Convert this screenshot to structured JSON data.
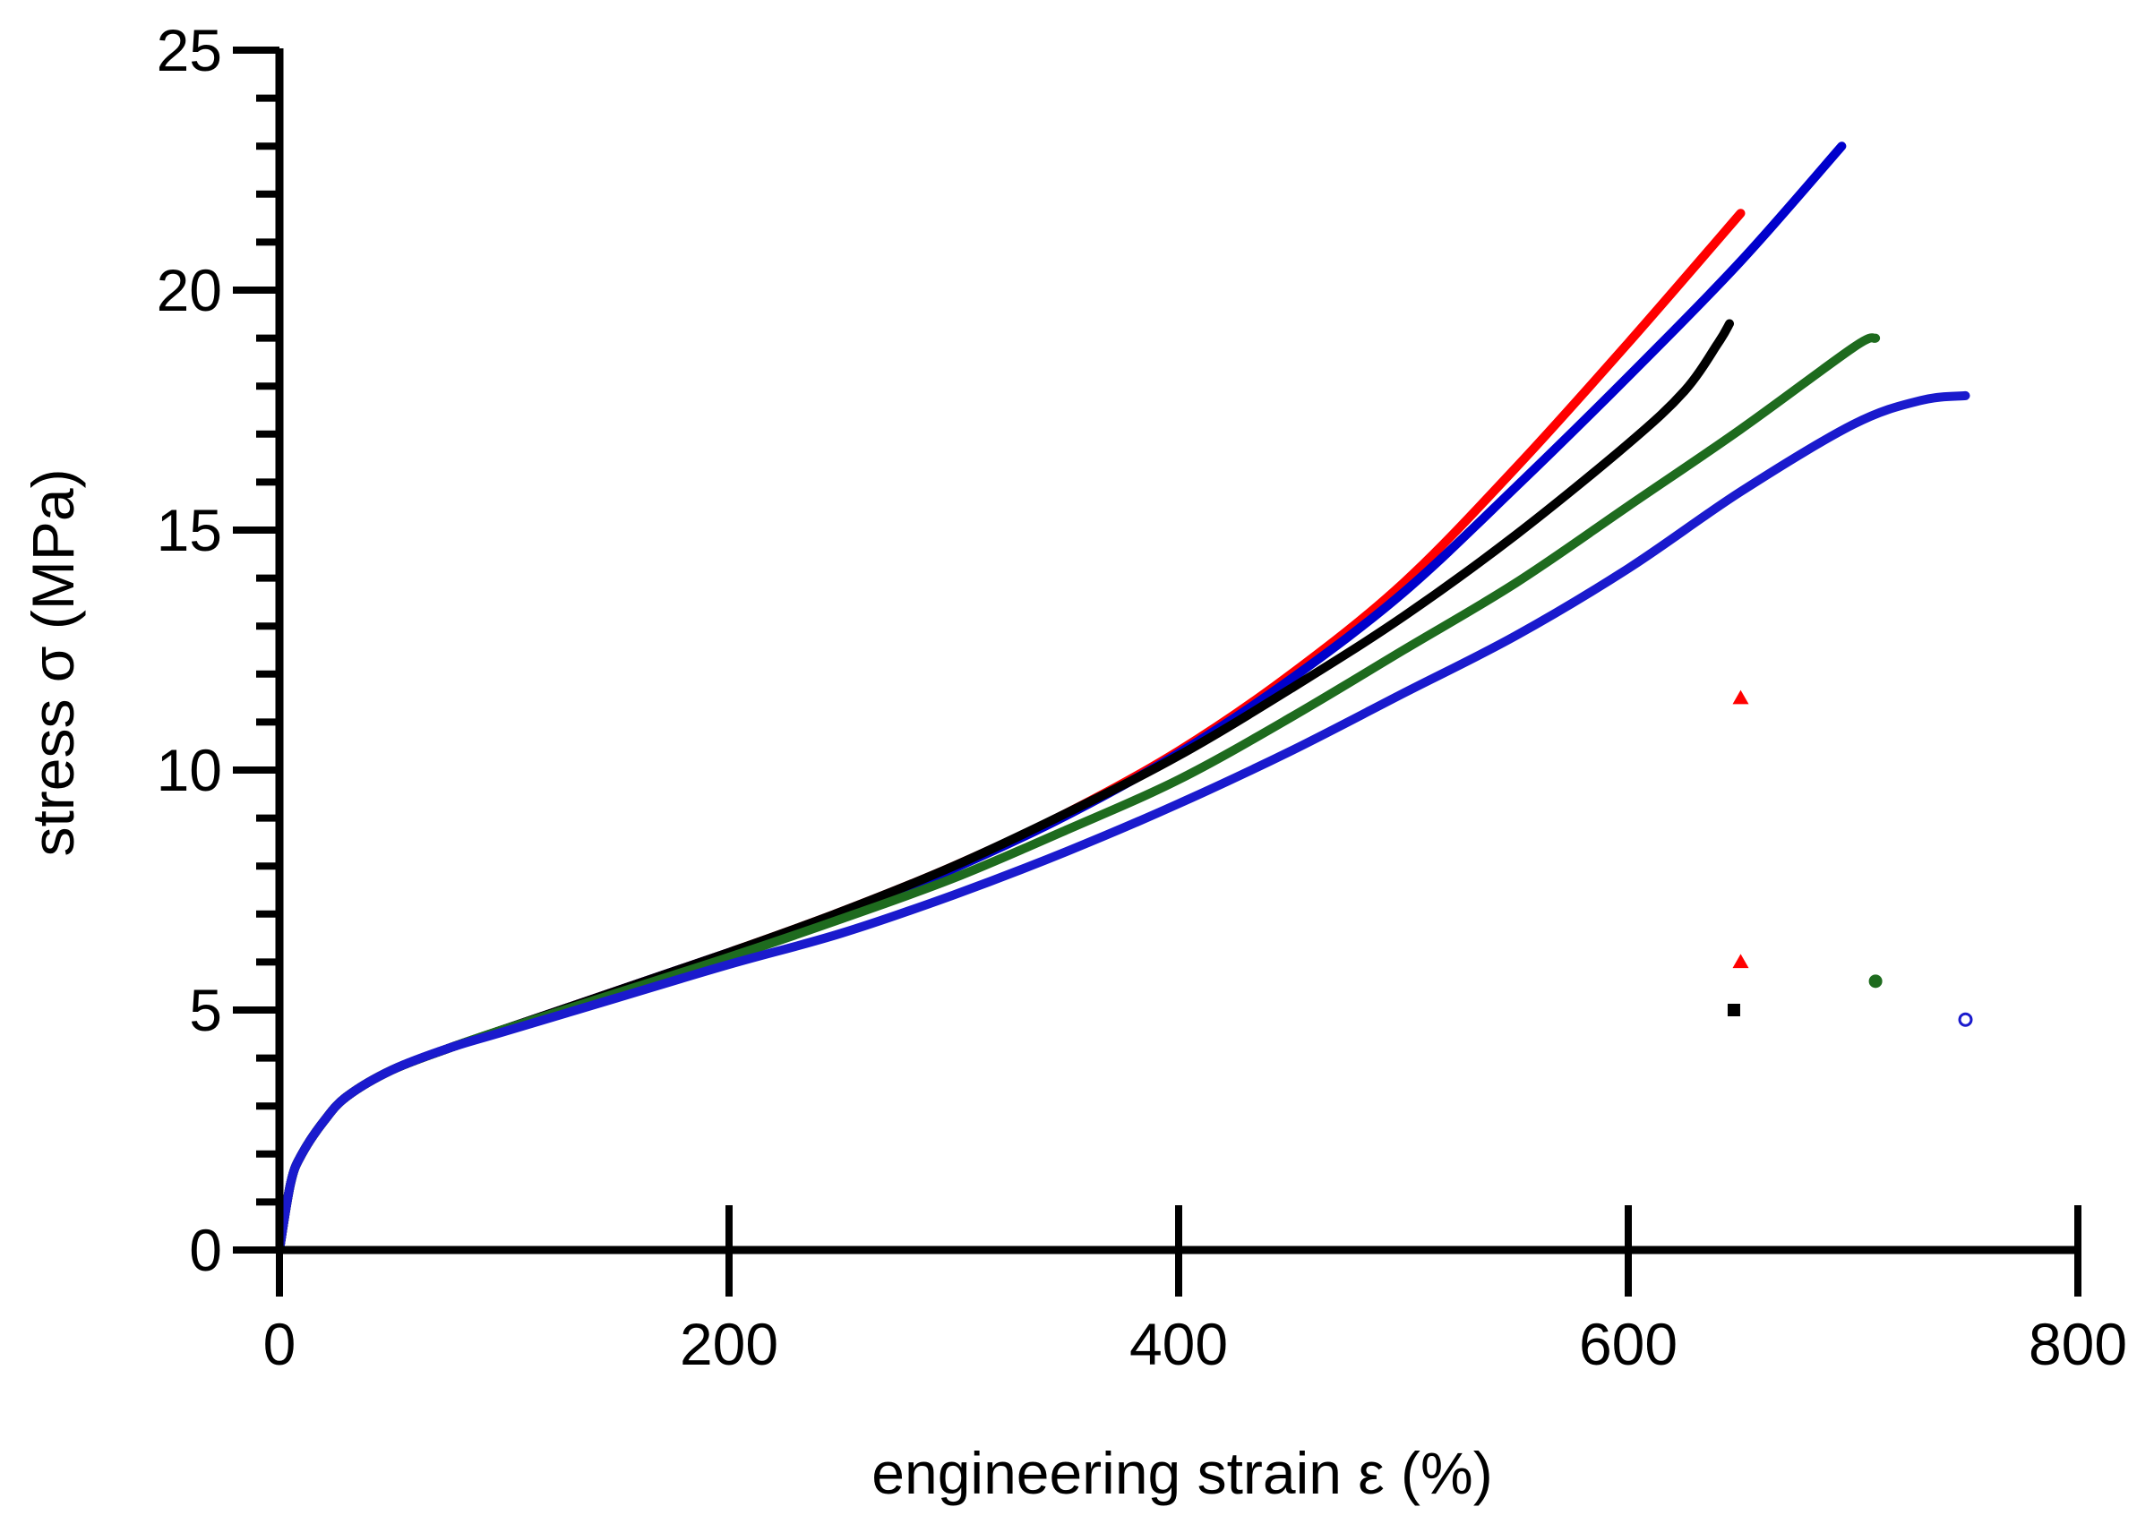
{
  "chart_data": {
    "type": "line",
    "title": "",
    "xlabel": "engineering strain ε (%)",
    "ylabel": "stress σ (MPa)",
    "xlim": [
      0,
      800
    ],
    "ylim": [
      0,
      25
    ],
    "x_ticks": [
      0,
      200,
      400,
      600,
      800
    ],
    "y_ticks": [
      0,
      5,
      10,
      15,
      20,
      25
    ],
    "x_tick_labels": [
      "0",
      "200",
      "400",
      "600",
      "800"
    ],
    "y_tick_labels": [
      "0",
      "5",
      "10",
      "15",
      "20",
      "25"
    ],
    "grid": false,
    "legend": "none",
    "series": [
      {
        "name": "red",
        "color": "#ff0000",
        "x": [
          0,
          5,
          10,
          20,
          30,
          50,
          75,
          100,
          150,
          200,
          250,
          300,
          350,
          400,
          450,
          500,
          550,
          600,
          650
        ],
        "y": [
          0,
          1.4,
          2.0,
          2.7,
          3.2,
          3.75,
          4.2,
          4.6,
          5.4,
          6.2,
          7.05,
          8.0,
          9.1,
          10.4,
          12.0,
          13.9,
          16.3,
          18.9,
          21.6
        ]
      },
      {
        "name": "blue (upper)",
        "color": "#0000cc",
        "x": [
          0,
          5,
          10,
          20,
          30,
          50,
          75,
          100,
          150,
          200,
          250,
          300,
          350,
          400,
          450,
          500,
          550,
          600,
          650,
          695
        ],
        "y": [
          0,
          1.4,
          2.0,
          2.7,
          3.2,
          3.75,
          4.2,
          4.6,
          5.4,
          6.2,
          7.0,
          7.95,
          9.05,
          10.35,
          11.9,
          13.7,
          15.9,
          18.2,
          20.6,
          23.0
        ]
      },
      {
        "name": "black",
        "color": "#000000",
        "x": [
          0,
          5,
          10,
          20,
          30,
          50,
          75,
          100,
          150,
          200,
          250,
          300,
          350,
          400,
          450,
          500,
          550,
          600,
          625,
          640,
          645
        ],
        "y": [
          0,
          1.4,
          2.0,
          2.7,
          3.2,
          3.75,
          4.2,
          4.6,
          5.4,
          6.2,
          7.05,
          8.0,
          9.1,
          10.3,
          11.7,
          13.2,
          14.9,
          16.8,
          17.9,
          18.9,
          19.3
        ]
      },
      {
        "name": "green",
        "color": "#1e6b1e",
        "x": [
          0,
          5,
          10,
          20,
          30,
          50,
          75,
          100,
          150,
          200,
          250,
          300,
          350,
          400,
          450,
          500,
          550,
          600,
          650,
          700,
          710
        ],
        "y": [
          0,
          1.4,
          2.0,
          2.7,
          3.2,
          3.75,
          4.2,
          4.6,
          5.35,
          6.1,
          6.9,
          7.75,
          8.75,
          9.8,
          11.1,
          12.5,
          13.9,
          15.5,
          17.1,
          18.8,
          19.0
        ]
      },
      {
        "name": "blue (lower)",
        "color": "#1a1acd",
        "x": [
          0,
          5,
          10,
          20,
          30,
          50,
          75,
          100,
          150,
          200,
          250,
          300,
          350,
          400,
          450,
          500,
          550,
          600,
          650,
          700,
          730,
          750
        ],
        "y": [
          0,
          1.4,
          2.0,
          2.7,
          3.2,
          3.75,
          4.2,
          4.55,
          5.25,
          5.95,
          6.6,
          7.4,
          8.3,
          9.3,
          10.4,
          11.6,
          12.8,
          14.2,
          15.8,
          17.2,
          17.7,
          17.8
        ]
      }
    ],
    "markers": [
      {
        "name": "red-triangle-upper",
        "shape": "triangle",
        "color": "#ff0000",
        "filled": true,
        "x": 650,
        "y": 11.5
      },
      {
        "name": "red-triangle-lower",
        "shape": "triangle",
        "color": "#ff0000",
        "filled": true,
        "x": 650,
        "y": 6.0
      },
      {
        "name": "black-square",
        "shape": "square",
        "color": "#000000",
        "filled": true,
        "x": 647,
        "y": 5.0
      },
      {
        "name": "green-circle",
        "shape": "circle",
        "color": "#1e6b1e",
        "filled": true,
        "x": 710,
        "y": 5.6
      },
      {
        "name": "blue-open-circle",
        "shape": "circle",
        "color": "#1a1acd",
        "filled": false,
        "x": 750,
        "y": 4.8
      }
    ]
  }
}
